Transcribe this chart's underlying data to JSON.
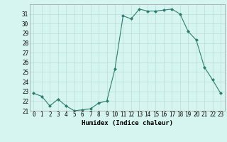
{
  "x": [
    0,
    1,
    2,
    3,
    4,
    5,
    6,
    7,
    8,
    9,
    10,
    11,
    12,
    13,
    14,
    15,
    16,
    17,
    18,
    19,
    20,
    21,
    22,
    23
  ],
  "y": [
    22.8,
    22.5,
    21.5,
    22.2,
    21.5,
    21.0,
    21.1,
    21.2,
    21.8,
    22.0,
    25.3,
    30.8,
    30.5,
    31.5,
    31.3,
    31.3,
    31.4,
    31.5,
    31.0,
    29.2,
    28.3,
    25.5,
    24.2,
    22.8
  ],
  "line_color": "#2e7d6e",
  "marker": "D",
  "marker_size": 2,
  "bg_color": "#d7f5f0",
  "grid_color": "#b8ddd8",
  "xlabel": "Humidex (Indice chaleur)",
  "ylim": [
    21,
    32
  ],
  "xlim": [
    -0.5,
    23.5
  ],
  "yticks": [
    21,
    22,
    23,
    24,
    25,
    26,
    27,
    28,
    29,
    30,
    31
  ],
  "xticks": [
    0,
    1,
    2,
    3,
    4,
    5,
    6,
    7,
    8,
    9,
    10,
    11,
    12,
    13,
    14,
    15,
    16,
    17,
    18,
    19,
    20,
    21,
    22,
    23
  ],
  "label_fontsize": 6.5,
  "tick_fontsize": 5.5
}
